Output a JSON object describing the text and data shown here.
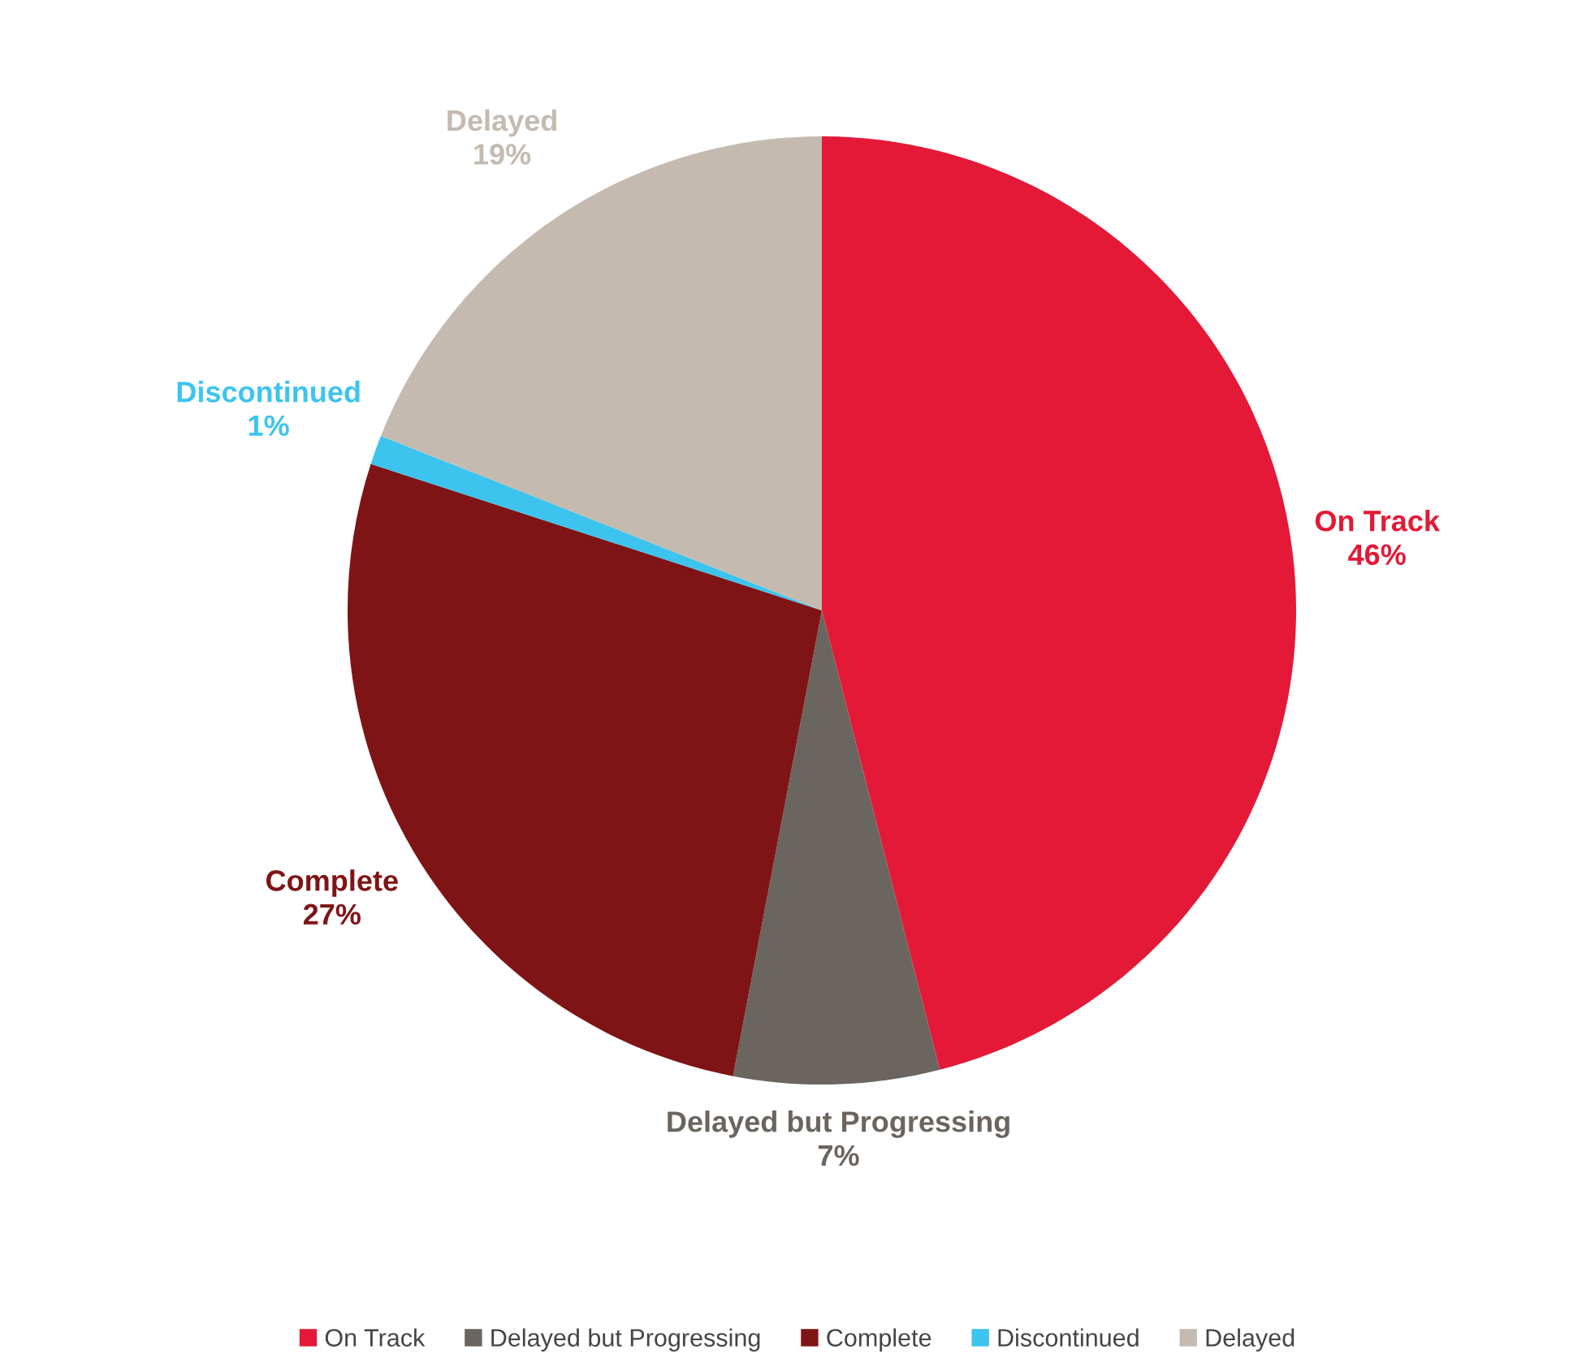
{
  "chart_data": {
    "type": "pie",
    "categories": [
      "On Track",
      "Delayed but Progressing",
      "Complete",
      "Discontinued",
      "Delayed"
    ],
    "values": [
      46,
      7,
      27,
      1,
      19
    ],
    "value_labels": [
      "46%",
      "7%",
      "27%",
      "1%",
      "19%"
    ],
    "colors": [
      "#e31937",
      "#6b6560",
      "#7f1416",
      "#3cc4ee",
      "#c4bab0"
    ],
    "legend": "bottom"
  }
}
